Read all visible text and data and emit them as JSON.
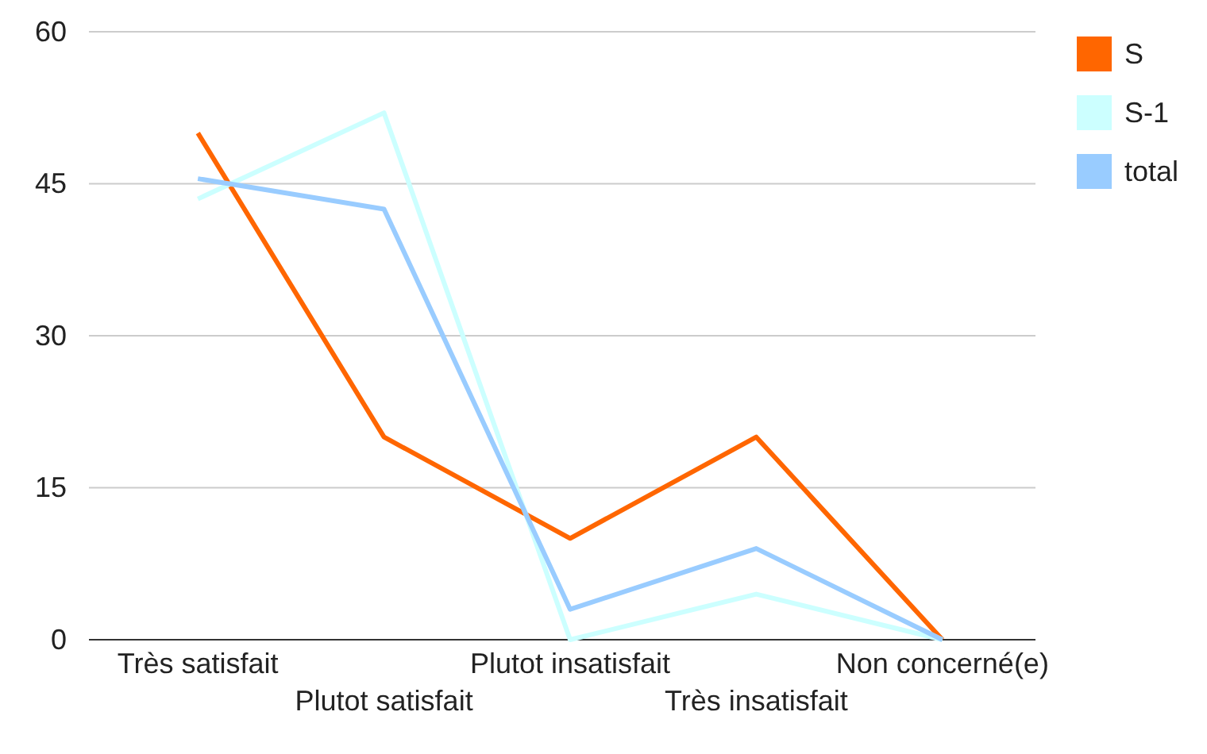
{
  "chart_data": {
    "type": "line",
    "categories": [
      "Très satisfait",
      "Plutot satisfait",
      "Plutot insatisfait",
      "Très insatisfait",
      "Non concerné(e)"
    ],
    "series": [
      {
        "name": "S",
        "color": "#ff6600",
        "values": [
          50,
          20,
          10,
          20,
          0
        ]
      },
      {
        "name": "S-1",
        "color": "#ccffff",
        "values": [
          43.5,
          52,
          0,
          4.5,
          0
        ]
      },
      {
        "name": "total",
        "color": "#99ccff",
        "values": [
          45.5,
          42.5,
          3,
          9,
          0
        ]
      }
    ],
    "ylim": [
      0,
      60
    ],
    "yticks": [
      0,
      15,
      30,
      45,
      60
    ],
    "grid": "y",
    "legend": "right"
  }
}
